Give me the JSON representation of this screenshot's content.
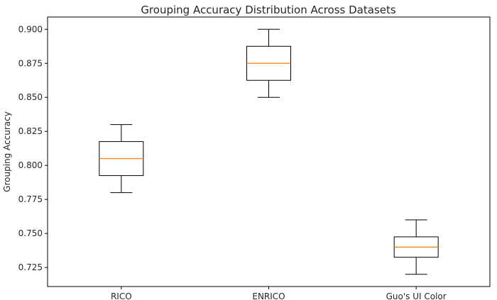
{
  "chart_data": {
    "type": "boxplot",
    "title": "Grouping Accuracy Distribution Across Datasets",
    "xlabel": "",
    "ylabel": "Grouping Accuracy",
    "categories": [
      "RICO",
      "ENRICO",
      "Guo's UI Color"
    ],
    "boxes": [
      {
        "category": "RICO",
        "whisker_low": 0.78,
        "q1": 0.7925,
        "median": 0.805,
        "q3": 0.8175,
        "whisker_high": 0.83
      },
      {
        "category": "ENRICO",
        "whisker_low": 0.85,
        "q1": 0.8625,
        "median": 0.875,
        "q3": 0.8875,
        "whisker_high": 0.9
      },
      {
        "category": "Guo's UI Color",
        "whisker_low": 0.72,
        "q1": 0.7325,
        "median": 0.74,
        "q3": 0.7475,
        "whisker_high": 0.76
      }
    ],
    "yticks": [
      0.725,
      0.75,
      0.775,
      0.8,
      0.825,
      0.85,
      0.875,
      0.9
    ],
    "ytick_labels": [
      "0.725",
      "0.750",
      "0.775",
      "0.800",
      "0.825",
      "0.850",
      "0.875",
      "0.900"
    ],
    "ylim": [
      0.711,
      0.909
    ],
    "grid": false,
    "colors": {
      "box": "#000000",
      "median": "#ff7f0e",
      "axis": "#000000"
    }
  }
}
